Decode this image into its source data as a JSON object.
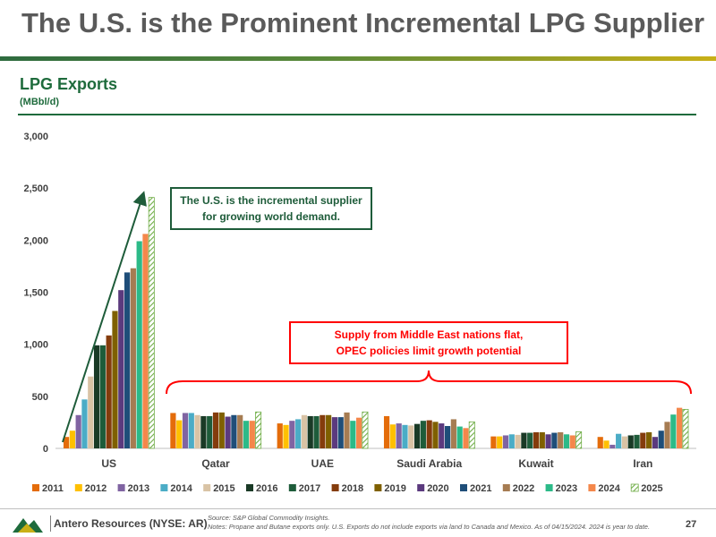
{
  "header": {
    "title": "The U.S. is the Prominent Incremental LPG Supplier"
  },
  "chart_data": {
    "type": "bar",
    "title": "LPG Exports",
    "subtitle": "(MBbl/d)",
    "categories": [
      "US",
      "Qatar",
      "UAE",
      "Saudi Arabia",
      "Kuwait",
      "Iran"
    ],
    "ylim": [
      0,
      3000
    ],
    "yticks": [
      "0",
      "500",
      "1,000",
      "1,500",
      "2,000",
      "2,500",
      "3,000"
    ],
    "grid": false,
    "legend": "bottom",
    "series": [
      {
        "name": "2011",
        "color": "#e46c0a",
        "values": [
          110,
          340,
          240,
          310,
          115,
          110
        ]
      },
      {
        "name": "2012",
        "color": "#ffc000",
        "values": [
          170,
          270,
          225,
          230,
          115,
          75
        ]
      },
      {
        "name": "2013",
        "color": "#8064a2",
        "values": [
          320,
          340,
          265,
          240,
          125,
          35
        ]
      },
      {
        "name": "2014",
        "color": "#4bacc6",
        "values": [
          470,
          340,
          280,
          225,
          135,
          140
        ]
      },
      {
        "name": "2015",
        "color": "#d9c3a5",
        "values": [
          690,
          320,
          320,
          220,
          130,
          115
        ]
      },
      {
        "name": "2016",
        "color": "#1a3a26",
        "values": [
          990,
          310,
          310,
          235,
          150,
          125
        ]
      },
      {
        "name": "2017",
        "color": "#1e5c3a",
        "values": [
          990,
          310,
          310,
          265,
          150,
          130
        ]
      },
      {
        "name": "2018",
        "color": "#843c0c",
        "values": [
          1085,
          345,
          320,
          270,
          155,
          150
        ]
      },
      {
        "name": "2019",
        "color": "#7f6000",
        "values": [
          1320,
          345,
          320,
          255,
          155,
          155
        ]
      },
      {
        "name": "2020",
        "color": "#5b3a7e",
        "values": [
          1520,
          305,
          300,
          240,
          135,
          110
        ]
      },
      {
        "name": "2021",
        "color": "#1f4e79",
        "values": [
          1690,
          320,
          300,
          215,
          150,
          170
        ]
      },
      {
        "name": "2022",
        "color": "#a67c52",
        "values": [
          1730,
          320,
          345,
          280,
          155,
          255
        ]
      },
      {
        "name": "2023",
        "color": "#2cba88",
        "values": [
          1990,
          265,
          265,
          210,
          135,
          325
        ]
      },
      {
        "name": "2024",
        "color": "#f4874b",
        "values": [
          2060,
          265,
          295,
          195,
          125,
          390
        ]
      },
      {
        "name": "2025",
        "color": "#92d050",
        "hatched": true,
        "values": [
          2410,
          350,
          350,
          255,
          160,
          375
        ]
      }
    ],
    "annotations": {
      "us_box": "The U.S. is the incremental supplier for growing world demand.",
      "me_box": "Supply from Middle East nations flat, OPEC policies limit growth potential"
    }
  },
  "footer": {
    "company": "Antero Resources (NYSE: AR)",
    "source": "Source: S&P Global Commodity Insights.",
    "notes": "Notes: Propane and Butane exports only.  U.S. Exports do not include exports via land to Canada and Mexico. As of 04/15/2024. 2024 is year to date.",
    "page": "27"
  }
}
